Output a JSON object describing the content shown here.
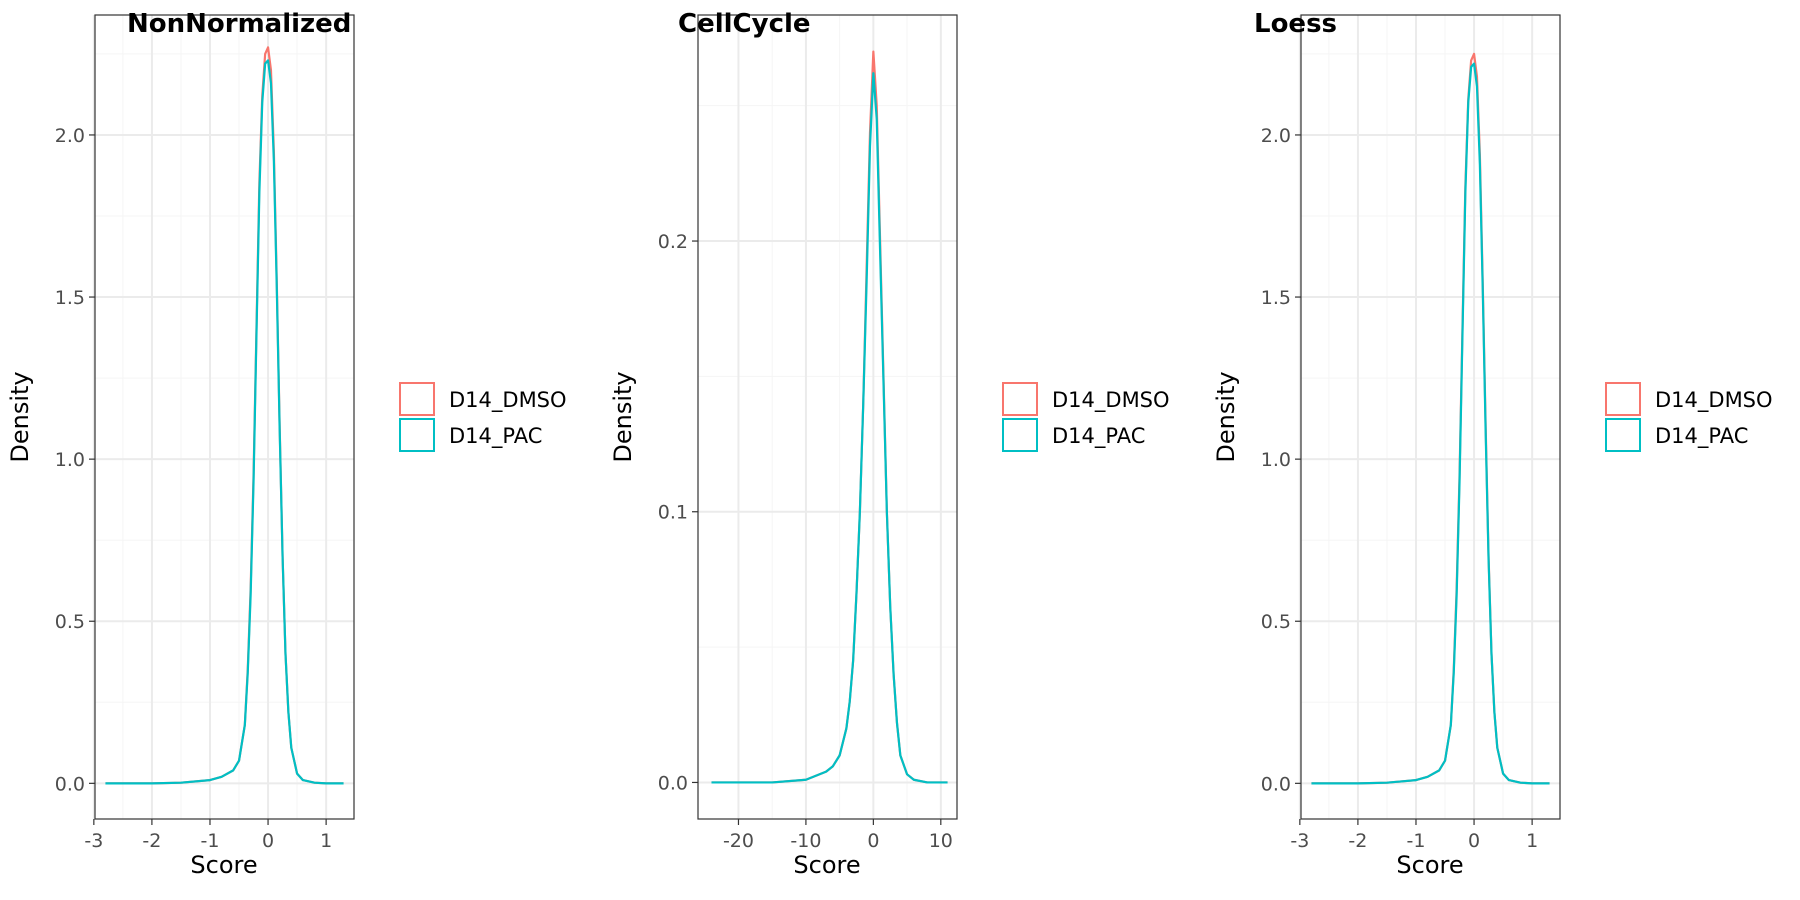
{
  "colors": {
    "D14_DMSO": "#F8766D",
    "D14_PAC": "#00BFC4",
    "grid_major": "#EBEBEB",
    "grid_minor": "#F5F5F5",
    "panel_border": "#333333",
    "tick_text": "#4D4D4D"
  },
  "chart_data": [
    {
      "type": "line",
      "title": "NonNormalized",
      "xlabel": "Score",
      "ylabel": "Density",
      "grid": true,
      "legend_position": "right",
      "xlim": [
        -2.98,
        1.48
      ],
      "ylim": [
        -0.11,
        2.37
      ],
      "x_ticks": [
        -3,
        -2,
        -1,
        0,
        1
      ],
      "x_tick_labels": [
        "-3",
        "-2",
        "-1",
        "0",
        "1"
      ],
      "y_ticks": [
        0.0,
        0.5,
        1.0,
        1.5,
        2.0
      ],
      "y_tick_labels": [
        "0.0",
        "0.5",
        "1.0",
        "1.5",
        "2.0"
      ],
      "series": [
        {
          "name": "D14_DMSO",
          "x": [
            -2.8,
            -2.0,
            -1.5,
            -1.0,
            -0.8,
            -0.6,
            -0.5,
            -0.4,
            -0.35,
            -0.3,
            -0.25,
            -0.2,
            -0.15,
            -0.1,
            -0.05,
            0.0,
            0.05,
            0.1,
            0.15,
            0.2,
            0.25,
            0.3,
            0.35,
            0.4,
            0.5,
            0.6,
            0.8,
            1.0,
            1.3
          ],
          "y": [
            0.0,
            0.0,
            0.002,
            0.01,
            0.02,
            0.04,
            0.07,
            0.18,
            0.35,
            0.6,
            0.95,
            1.4,
            1.85,
            2.12,
            2.25,
            2.27,
            2.2,
            1.95,
            1.55,
            1.1,
            0.7,
            0.4,
            0.22,
            0.11,
            0.03,
            0.01,
            0.002,
            0.0,
            0.0
          ]
        },
        {
          "name": "D14_PAC",
          "x": [
            -2.8,
            -2.0,
            -1.5,
            -1.0,
            -0.8,
            -0.6,
            -0.5,
            -0.4,
            -0.35,
            -0.3,
            -0.25,
            -0.2,
            -0.15,
            -0.1,
            -0.05,
            0.0,
            0.05,
            0.1,
            0.15,
            0.2,
            0.25,
            0.3,
            0.35,
            0.4,
            0.5,
            0.6,
            0.8,
            1.0,
            1.3
          ],
          "y": [
            0.0,
            0.0,
            0.002,
            0.01,
            0.02,
            0.04,
            0.07,
            0.18,
            0.34,
            0.58,
            0.93,
            1.38,
            1.82,
            2.1,
            2.22,
            2.23,
            2.16,
            1.92,
            1.53,
            1.09,
            0.7,
            0.4,
            0.22,
            0.11,
            0.03,
            0.01,
            0.002,
            0.0,
            0.0
          ]
        }
      ]
    },
    {
      "type": "line",
      "title": "CellCycle",
      "xlabel": "Score",
      "ylabel": "Density",
      "grid": true,
      "legend_position": "right",
      "xlim": [
        -26.0,
        12.4
      ],
      "ylim": [
        -0.0135,
        0.2835
      ],
      "x_ticks": [
        -20,
        -10,
        0,
        10
      ],
      "x_tick_labels": [
        "-20",
        "-10",
        "0",
        "10"
      ],
      "y_ticks": [
        0.0,
        0.1,
        0.2
      ],
      "y_tick_labels": [
        "0.0",
        "0.1",
        "0.2"
      ],
      "series": [
        {
          "name": "D14_DMSO",
          "x": [
            -24,
            -15,
            -10,
            -7,
            -6,
            -5,
            -4,
            -3.5,
            -3,
            -2.5,
            -2,
            -1.5,
            -1,
            -0.5,
            0,
            0.5,
            1,
            1.5,
            2,
            2.5,
            3,
            3.5,
            4,
            5,
            6,
            8,
            11
          ],
          "y": [
            0.0,
            0.0,
            0.001,
            0.004,
            0.006,
            0.01,
            0.02,
            0.03,
            0.045,
            0.07,
            0.1,
            0.14,
            0.19,
            0.24,
            0.27,
            0.25,
            0.2,
            0.15,
            0.1,
            0.065,
            0.04,
            0.022,
            0.01,
            0.003,
            0.001,
            0.0,
            0.0
          ]
        },
        {
          "name": "D14_PAC",
          "x": [
            -24,
            -15,
            -10,
            -7,
            -6,
            -5,
            -4,
            -3.5,
            -3,
            -2.5,
            -2,
            -1.5,
            -1,
            -0.5,
            0,
            0.5,
            1,
            1.5,
            2,
            2.5,
            3,
            3.5,
            4,
            5,
            6,
            8,
            11
          ],
          "y": [
            0.0,
            0.0,
            0.001,
            0.004,
            0.006,
            0.01,
            0.02,
            0.03,
            0.045,
            0.07,
            0.1,
            0.14,
            0.185,
            0.235,
            0.262,
            0.245,
            0.196,
            0.148,
            0.1,
            0.065,
            0.04,
            0.022,
            0.01,
            0.003,
            0.001,
            0.0,
            0.0
          ]
        }
      ]
    },
    {
      "type": "line",
      "title": "Loess",
      "xlabel": "Score",
      "ylabel": "Density",
      "grid": true,
      "legend_position": "right",
      "xlim": [
        -2.98,
        1.48
      ],
      "ylim": [
        -0.11,
        2.37
      ],
      "x_ticks": [
        -3,
        -2,
        -1,
        0,
        1
      ],
      "x_tick_labels": [
        "-3",
        "-2",
        "-1",
        "0",
        "1"
      ],
      "y_ticks": [
        0.0,
        0.5,
        1.0,
        1.5,
        2.0
      ],
      "y_tick_labels": [
        "0.0",
        "0.5",
        "1.0",
        "1.5",
        "2.0"
      ],
      "series": [
        {
          "name": "D14_DMSO",
          "x": [
            -2.8,
            -2.0,
            -1.5,
            -1.0,
            -0.8,
            -0.6,
            -0.5,
            -0.4,
            -0.35,
            -0.3,
            -0.25,
            -0.2,
            -0.15,
            -0.1,
            -0.05,
            0.0,
            0.05,
            0.1,
            0.15,
            0.2,
            0.25,
            0.3,
            0.35,
            0.4,
            0.5,
            0.6,
            0.8,
            1.0,
            1.3
          ],
          "y": [
            0.0,
            0.0,
            0.002,
            0.01,
            0.02,
            0.04,
            0.07,
            0.18,
            0.35,
            0.6,
            0.95,
            1.4,
            1.84,
            2.11,
            2.23,
            2.25,
            2.18,
            1.94,
            1.54,
            1.1,
            0.7,
            0.4,
            0.22,
            0.11,
            0.03,
            0.01,
            0.002,
            0.0,
            0.0
          ]
        },
        {
          "name": "D14_PAC",
          "x": [
            -2.8,
            -2.0,
            -1.5,
            -1.0,
            -0.8,
            -0.6,
            -0.5,
            -0.4,
            -0.35,
            -0.3,
            -0.25,
            -0.2,
            -0.15,
            -0.1,
            -0.05,
            0.0,
            0.05,
            0.1,
            0.15,
            0.2,
            0.25,
            0.3,
            0.35,
            0.4,
            0.5,
            0.6,
            0.8,
            1.0,
            1.3
          ],
          "y": [
            0.0,
            0.0,
            0.002,
            0.01,
            0.02,
            0.04,
            0.07,
            0.18,
            0.34,
            0.58,
            0.93,
            1.38,
            1.82,
            2.1,
            2.21,
            2.22,
            2.15,
            1.91,
            1.52,
            1.08,
            0.69,
            0.4,
            0.22,
            0.11,
            0.03,
            0.01,
            0.002,
            0.0,
            0.0
          ]
        }
      ]
    }
  ]
}
